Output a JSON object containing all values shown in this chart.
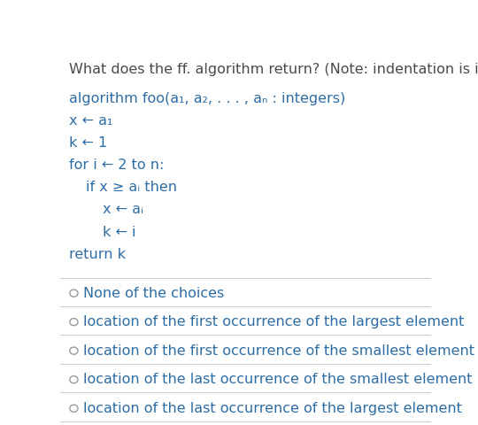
{
  "bg_color": "#ffffff",
  "question_text": "What does the ff. algorithm return? (Note: indentation is important)",
  "question_color": "#4a4a4a",
  "question_fontsize": 11.5,
  "code_color": "#2e6da4",
  "code_fontsize": 11.5,
  "choice_color": "#2e6da4",
  "choice_fontsize": 11.5,
  "separator_color": "#cccccc",
  "choices": [
    "None of the choices",
    "location of the first occurrence of the largest element",
    "location of the first occurrence of the smallest element",
    "location of the last occurrence of the smallest element",
    "location of the last occurrence of the largest element"
  ],
  "code_lines": [
    [
      "algorithm foo(a₁, a₂, . . . , aₙ : integers)",
      0
    ],
    [
      "x ← a₁",
      0
    ],
    [
      "k ← 1",
      0
    ],
    [
      "for i ← 2 to n:",
      0
    ],
    [
      "if x ≥ aᵢ then",
      1
    ],
    [
      "x ← aᵢ",
      2
    ],
    [
      "k ← i",
      2
    ],
    [
      "return k",
      0
    ]
  ]
}
